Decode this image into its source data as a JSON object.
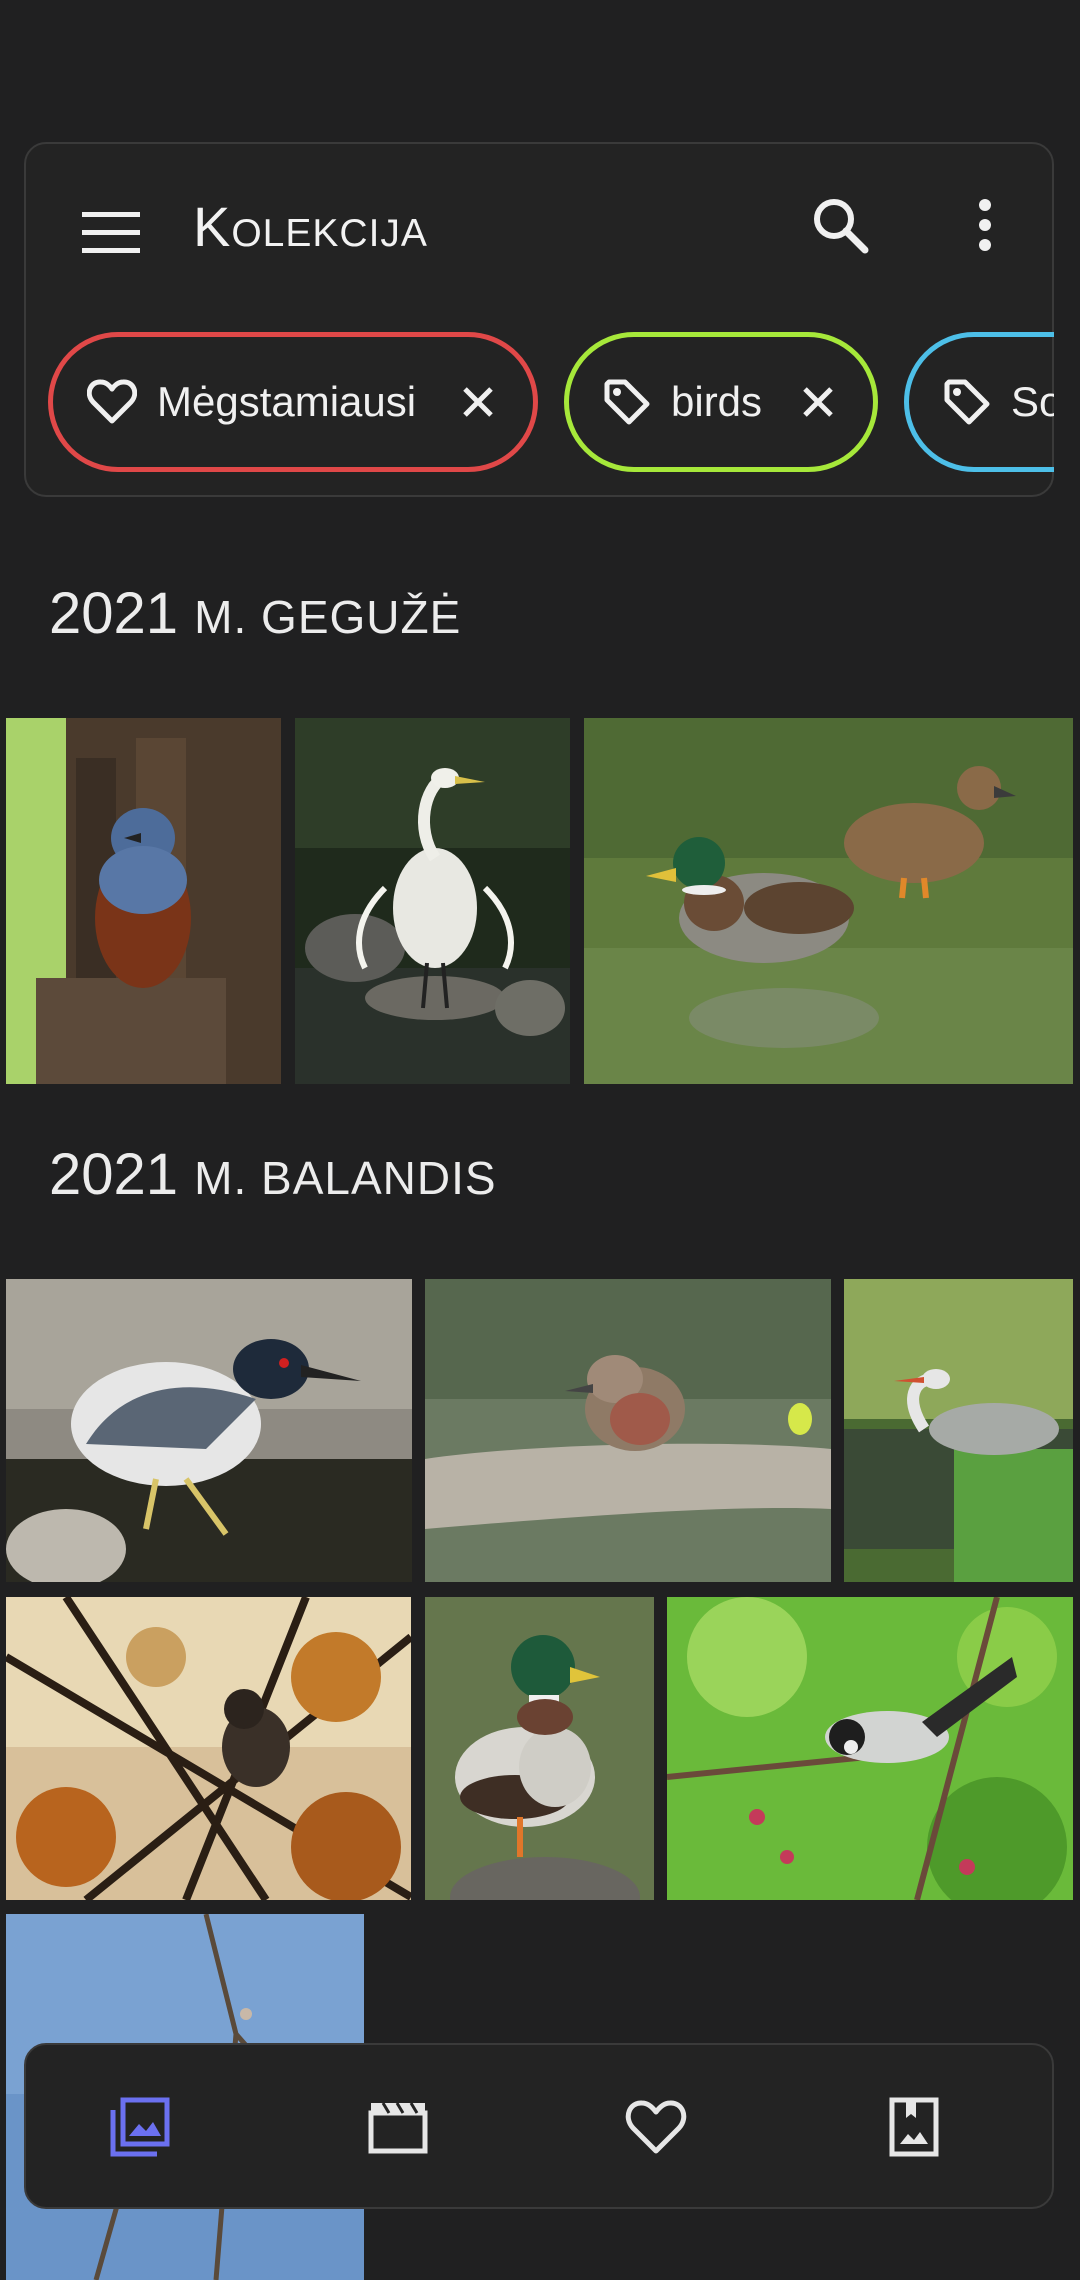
{
  "app": {
    "title": "Kolekcija",
    "accent_color": "#6b70f0"
  },
  "toolbar": {
    "menu_icon": "menu-icon",
    "search_icon": "search-icon",
    "more_icon": "more-vert-icon"
  },
  "filters": [
    {
      "label": "Mėgstamiausi",
      "icon": "heart-outline-icon",
      "color": "#e04848",
      "removable": true
    },
    {
      "label": "birds",
      "icon": "tag-outline-icon",
      "color": "#a6e83a",
      "removable": true
    },
    {
      "label": "So",
      "icon": "tag-outline-icon",
      "color": "#4dbfe8",
      "removable": false
    }
  ],
  "sections": [
    {
      "year": "2021",
      "month": "m. gegužė",
      "photo_count": 3
    },
    {
      "year": "2021",
      "month": "m. balandis",
      "photo_count": 7
    }
  ],
  "photos": [
    {
      "subject": "blue rock thrush on wooden post"
    },
    {
      "subject": "great egret on rock"
    },
    {
      "subject": "pair of mallard ducks in water"
    },
    {
      "subject": "black-crowned night heron"
    },
    {
      "subject": "young starling on branch"
    },
    {
      "subject": "grey heron by grass"
    },
    {
      "subject": "bird in autumn branches"
    },
    {
      "subject": "mallard drake on rock"
    },
    {
      "subject": "tit among cherry blossoms"
    },
    {
      "subject": "branches against blue sky"
    }
  ],
  "bottom_nav": [
    {
      "name": "photos",
      "icon": "photo-library-icon",
      "active": true
    },
    {
      "name": "videos",
      "icon": "movie-icon",
      "active": false
    },
    {
      "name": "favorites",
      "icon": "heart-outline-icon",
      "active": false
    },
    {
      "name": "albums",
      "icon": "photo-album-icon",
      "active": false
    }
  ]
}
